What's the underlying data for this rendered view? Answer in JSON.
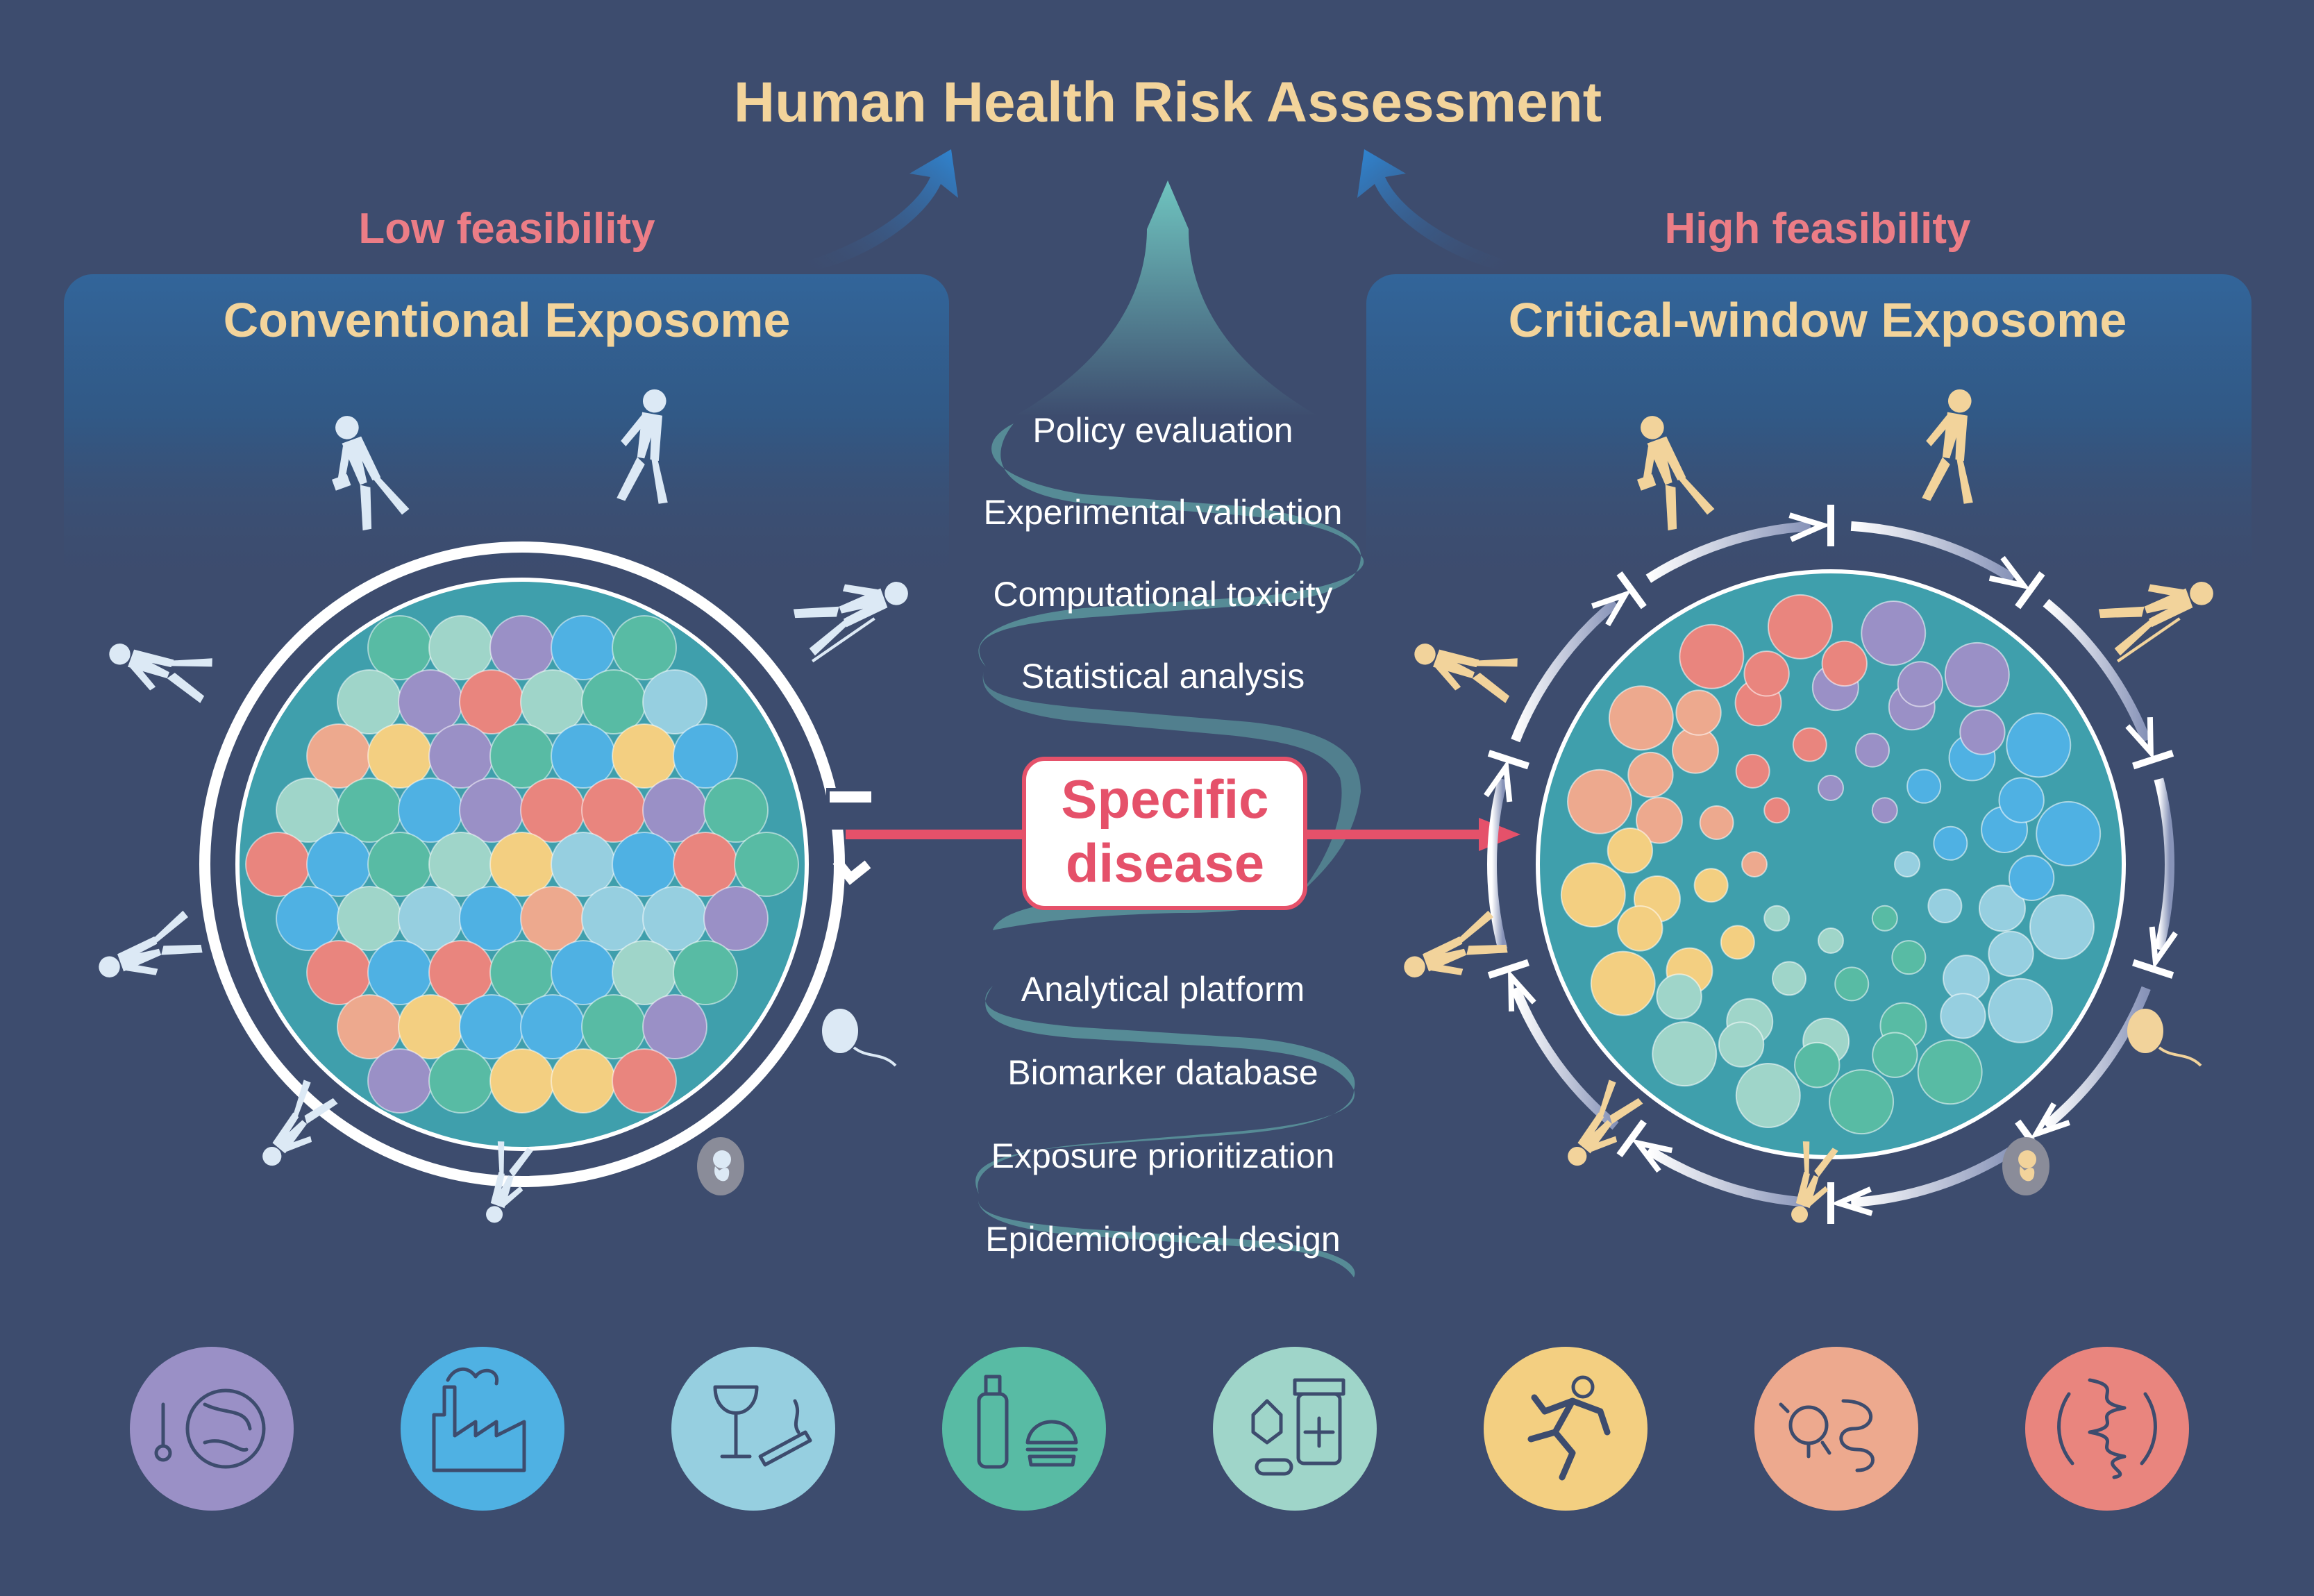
{
  "title": "Human Health Risk Assessment",
  "left": {
    "feasibility": "Low feasibility",
    "panel_title": "Conventional Exposome"
  },
  "right": {
    "feasibility": "High feasibility",
    "panel_title": "Critical-window Exposome"
  },
  "center": {
    "upper_steps": [
      "Policy evaluation",
      "Experimental validation",
      "Computational toxicity",
      "Statistical analysis"
    ],
    "lower_steps": [
      "Analytical platform",
      "Biomarker database",
      "Exposure prioritization",
      "Epidemiological design"
    ],
    "disease_line1": "Specific",
    "disease_line2": "disease"
  },
  "exposure_icons": [
    {
      "name": "climate-icon",
      "color": "#9a90c6"
    },
    {
      "name": "factory-icon",
      "color": "#4fb1e3"
    },
    {
      "name": "wine-cigarette-icon",
      "color": "#96cfe0"
    },
    {
      "name": "bottle-burger-icon",
      "color": "#58bba4"
    },
    {
      "name": "medicine-icon",
      "color": "#9fd5c9"
    },
    {
      "name": "running-icon",
      "color": "#f3cf81"
    },
    {
      "name": "microbiome-icon",
      "color": "#eda98e"
    },
    {
      "name": "dna-icon",
      "color": "#e9857e"
    }
  ],
  "colors": {
    "background": "#3d4c6e",
    "title": "#f3d49b",
    "feasibility": "#ec7d86",
    "disease": "#e5516a",
    "left_figures": "#dce9f5",
    "right_figures": "#f2d39b",
    "circle_fill": "#3f9fac"
  }
}
